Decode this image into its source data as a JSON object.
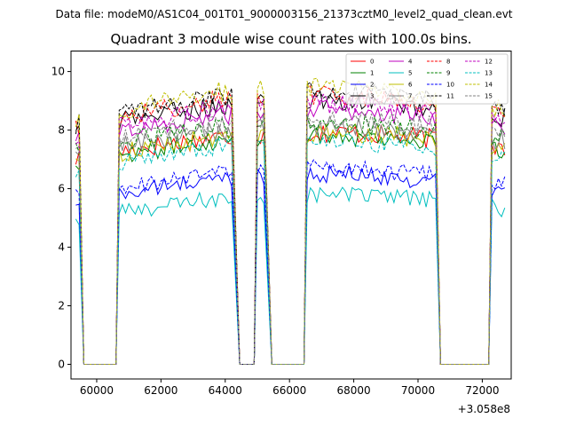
{
  "chart_data": {
    "type": "line",
    "suptitle": "Data file: modeM0/AS1C04_001T01_9000003156_21373cztM0_level2_quad_clean.evt",
    "title": "Quadrant 3 module wise count rates with 100.0s bins.",
    "xlabel": "",
    "ylabel": "",
    "offset_label": "+3.058e8",
    "xlim": [
      59200,
      72900
    ],
    "ylim": [
      -0.5,
      10.7
    ],
    "xticks": [
      60000,
      62000,
      64000,
      66000,
      68000,
      70000,
      72000
    ],
    "xtick_labels": [
      "60000",
      "62000",
      "64000",
      "66000",
      "68000",
      "70000",
      "72000"
    ],
    "yticks": [
      0,
      2,
      4,
      6,
      8,
      10
    ],
    "ytick_labels": [
      "0",
      "2",
      "4",
      "6",
      "8",
      "10"
    ],
    "segments": [
      {
        "start": 59350,
        "end": 59500
      },
      {
        "start": 60700,
        "end": 64250
      },
      {
        "start": 65000,
        "end": 65250
      },
      {
        "start": 66550,
        "end": 70600
      },
      {
        "start": 72300,
        "end": 72750
      }
    ],
    "gap_points": [
      {
        "x": 59600,
        "y": 0
      },
      {
        "x": 59700,
        "y": 0
      },
      {
        "x": 60600,
        "y": 0
      },
      {
        "x": 64450,
        "y": 0
      },
      {
        "x": 64600,
        "y": 0
      },
      {
        "x": 64900,
        "y": 0
      },
      {
        "x": 65450,
        "y": 0
      },
      {
        "x": 65600,
        "y": 0
      },
      {
        "x": 66450,
        "y": 0
      },
      {
        "x": 70700,
        "y": 0
      },
      {
        "x": 70800,
        "y": 0
      },
      {
        "x": 72200,
        "y": 0
      }
    ],
    "series": [
      {
        "name": "0",
        "color": "#ff0000",
        "dash": "solid",
        "level": 7.0,
        "growth": 0.7,
        "noise": 0.35
      },
      {
        "name": "1",
        "color": "#008000",
        "dash": "solid",
        "level": 6.9,
        "growth": 0.7,
        "noise": 0.35
      },
      {
        "name": "2",
        "color": "#0000ff",
        "dash": "solid",
        "level": 5.5,
        "growth": 0.8,
        "noise": 0.3
      },
      {
        "name": "3",
        "color": "#000000",
        "dash": "solid",
        "level": 8.0,
        "growth": 0.8,
        "noise": 0.35
      },
      {
        "name": "4",
        "color": "#bf00bf",
        "dash": "solid",
        "level": 7.6,
        "growth": 0.9,
        "noise": 0.35
      },
      {
        "name": "5",
        "color": "#00bfbf",
        "dash": "solid",
        "level": 4.9,
        "growth": 0.7,
        "noise": 0.3
      },
      {
        "name": "6",
        "color": "#bfbf00",
        "dash": "solid",
        "level": 6.9,
        "growth": 0.8,
        "noise": 0.35
      },
      {
        "name": "7",
        "color": "#808080",
        "dash": "solid",
        "level": 7.2,
        "growth": 0.7,
        "noise": 0.35
      },
      {
        "name": "8",
        "color": "#ff0000",
        "dash": "dashed",
        "level": 8.1,
        "growth": 0.9,
        "noise": 0.35
      },
      {
        "name": "9",
        "color": "#008000",
        "dash": "dashed",
        "level": 7.3,
        "growth": 0.7,
        "noise": 0.35
      },
      {
        "name": "10",
        "color": "#0000ff",
        "dash": "dashed",
        "level": 5.7,
        "growth": 0.8,
        "noise": 0.3
      },
      {
        "name": "11",
        "color": "#000000",
        "dash": "dashed",
        "level": 8.2,
        "growth": 0.9,
        "noise": 0.35
      },
      {
        "name": "12",
        "color": "#bf00bf",
        "dash": "dashed",
        "level": 7.8,
        "growth": 0.9,
        "noise": 0.35
      },
      {
        "name": "13",
        "color": "#00bfbf",
        "dash": "dashed",
        "level": 6.6,
        "growth": 0.8,
        "noise": 0.3
      },
      {
        "name": "14",
        "color": "#bfbf00",
        "dash": "dashed",
        "level": 8.3,
        "growth": 1.0,
        "noise": 0.35
      },
      {
        "name": "15",
        "color": "#808080",
        "dash": "dashed",
        "level": 7.4,
        "growth": 0.8,
        "noise": 0.35
      }
    ]
  }
}
